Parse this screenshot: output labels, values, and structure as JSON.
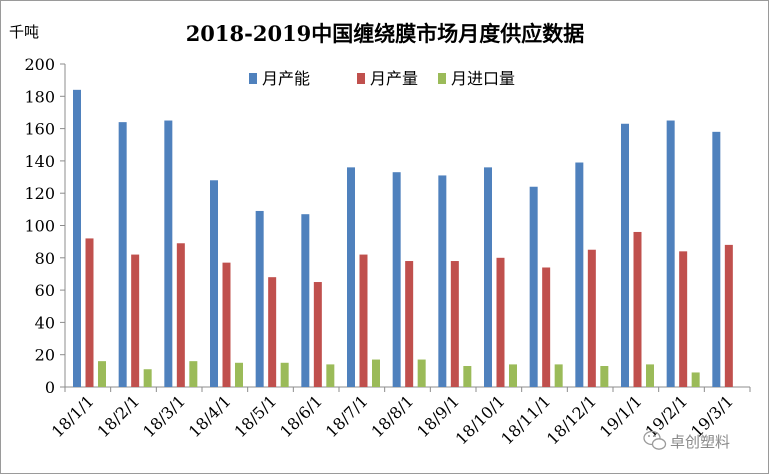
{
  "chart_data": {
    "type": "bar",
    "title": "2018-2019中国缠绕膜市场月度供应数据",
    "unit_label": "千吨",
    "xlabel": "",
    "ylabel": "千吨",
    "ylim": [
      0,
      200
    ],
    "yticks": [
      0,
      20,
      40,
      60,
      80,
      100,
      120,
      140,
      160,
      180,
      200
    ],
    "grid": false,
    "legend_position": "top-right",
    "categories": [
      "18/1/1",
      "18/2/1",
      "18/3/1",
      "18/4/1",
      "18/5/1",
      "18/6/1",
      "18/7/1",
      "18/8/1",
      "18/9/1",
      "18/10/1",
      "18/11/1",
      "18/12/1",
      "19/1/1",
      "19/2/1",
      "19/3/1"
    ],
    "series": [
      {
        "name": "月产能",
        "color": "#4F81BD",
        "values": [
          184,
          164,
          165,
          128,
          109,
          107,
          136,
          133,
          131,
          136,
          124,
          139,
          163,
          165,
          158
        ]
      },
      {
        "name": "月产量",
        "color": "#C0504D",
        "values": [
          92,
          82,
          89,
          77,
          68,
          65,
          82,
          78,
          78,
          80,
          74,
          85,
          96,
          84,
          88
        ]
      },
      {
        "name": "月进口量",
        "color": "#9BBB59",
        "values": [
          16,
          11,
          16,
          15,
          15,
          14,
          17,
          17,
          13,
          14,
          14,
          13,
          14,
          9,
          0
        ]
      }
    ]
  },
  "watermark": {
    "text": "卓创塑料",
    "icon": "wechat-icon"
  }
}
